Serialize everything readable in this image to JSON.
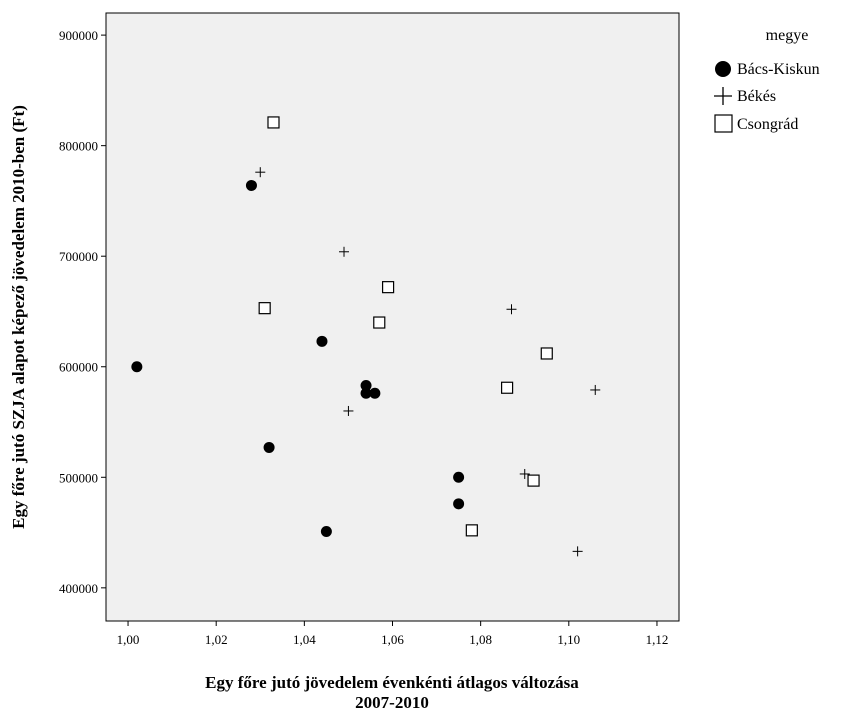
{
  "chart_data": {
    "type": "scatter",
    "title": "",
    "xlabel_lines": [
      "Egy főre jutó jövedelem évenkénti átlagos változása",
      "2007-2010"
    ],
    "ylabel": "Egy főre jutó SZJA alapot képező jövedelem 2010-ben (Ft)",
    "xlim": [
      0.995,
      1.125
    ],
    "ylim": [
      370000,
      920000
    ],
    "x_ticks": [
      1.0,
      1.02,
      1.04,
      1.06,
      1.08,
      1.1,
      1.12
    ],
    "x_tick_labels": [
      "1,00",
      "1,02",
      "1,04",
      "1,06",
      "1,08",
      "1,10",
      "1,12"
    ],
    "y_ticks": [
      400000,
      500000,
      600000,
      700000,
      800000,
      900000
    ],
    "y_tick_labels": [
      "400000",
      "500000",
      "600000",
      "700000",
      "800000",
      "900000"
    ],
    "grid": false,
    "plot_background": "#f0f0f0",
    "legend": {
      "title": "megye",
      "placement": "right-top",
      "entries": [
        "Bács-Kiskun",
        "Békés",
        "Csongrád"
      ]
    },
    "series": [
      {
        "name": "Bács-Kiskun",
        "marker": "filled-circle",
        "points": [
          [
            1.002,
            600000
          ],
          [
            1.028,
            764000
          ],
          [
            1.032,
            527000
          ],
          [
            1.044,
            623000
          ],
          [
            1.045,
            451000
          ],
          [
            1.054,
            583000
          ],
          [
            1.054,
            576000
          ],
          [
            1.056,
            576000
          ],
          [
            1.075,
            500000
          ],
          [
            1.075,
            476000
          ]
        ]
      },
      {
        "name": "Békés",
        "marker": "plus",
        "points": [
          [
            1.03,
            776000
          ],
          [
            1.049,
            704000
          ],
          [
            1.05,
            560000
          ],
          [
            1.087,
            652000
          ],
          [
            1.09,
            503000
          ],
          [
            1.102,
            433000
          ],
          [
            1.106,
            579000
          ]
        ]
      },
      {
        "name": "Csongrád",
        "marker": "open-square",
        "points": [
          [
            1.033,
            821000
          ],
          [
            1.031,
            653000
          ],
          [
            1.059,
            672000
          ],
          [
            1.057,
            640000
          ],
          [
            1.086,
            581000
          ],
          [
            1.078,
            452000
          ],
          [
            1.092,
            497000
          ],
          [
            1.095,
            612000
          ]
        ]
      }
    ]
  }
}
